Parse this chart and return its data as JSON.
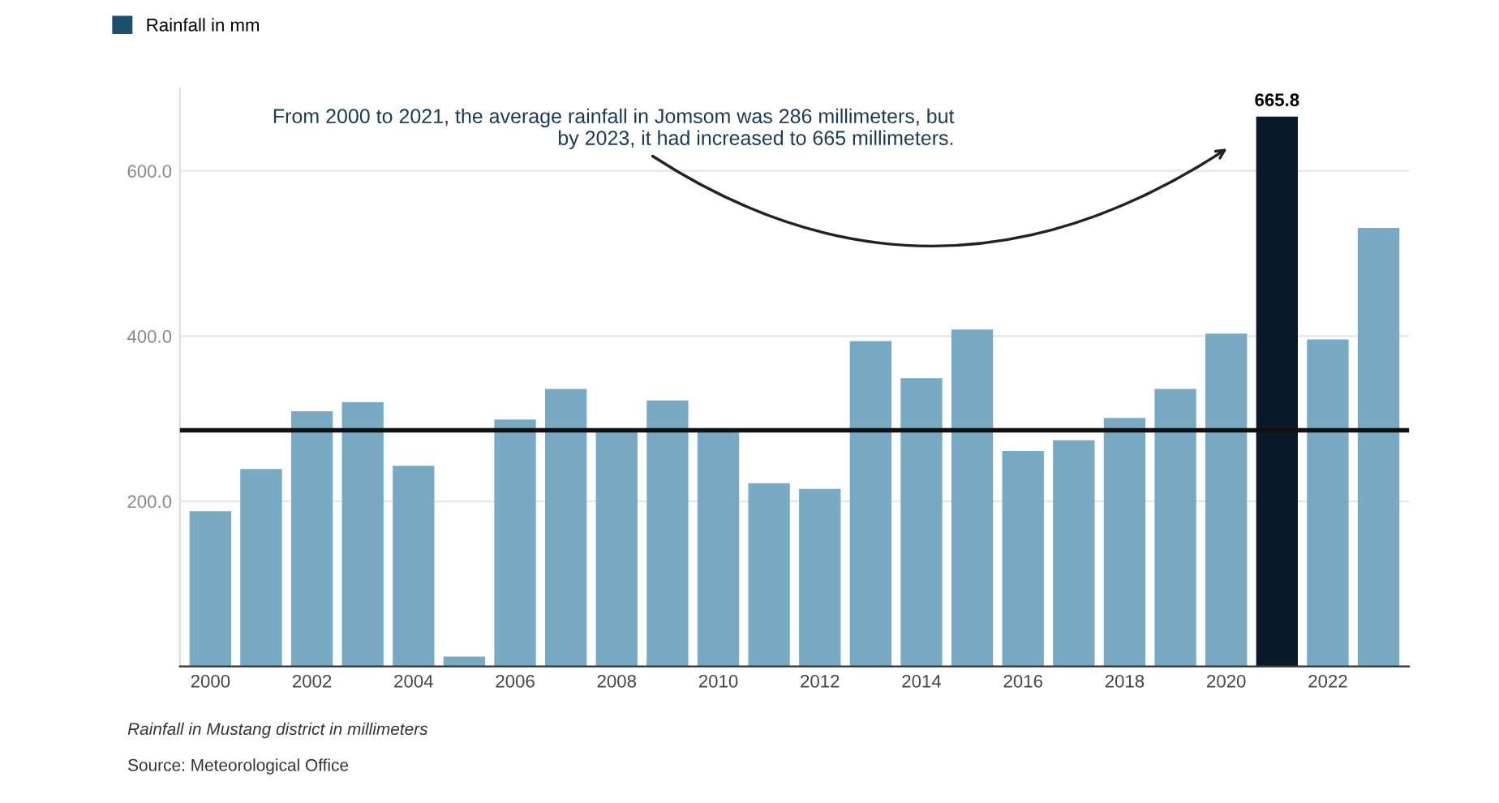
{
  "chart_data": {
    "type": "bar",
    "categories": [
      "2000",
      null,
      "2002",
      null,
      "2004",
      null,
      "2006",
      null,
      "2008",
      null,
      "2010",
      null,
      "2012",
      null,
      "2014",
      null,
      "2016",
      null,
      "2018",
      null,
      "2020",
      null,
      "2022",
      null
    ],
    "series": [
      {
        "name": "Rainfall in mm",
        "color": "#1d4e6b",
        "colors": [
          "#78aac4",
          "#78aac4",
          "#78aac4",
          "#78aac4",
          "#78aac4",
          "#78aac4",
          "#78aac4",
          "#78aac4",
          "#78aac4",
          "#78aac4",
          "#78aac4",
          "#78aac4",
          "#78aac4",
          "#78aac4",
          "#78aac4",
          "#78aac4",
          "#78aac4",
          "#78aac4",
          "#78aac4",
          "#78aac4",
          "#78aac4",
          "#0b1a2a",
          "#78aac4",
          "#78aac4"
        ],
        "values": [
          188,
          239,
          309,
          320,
          243,
          12,
          299,
          336,
          285,
          322,
          286,
          222,
          215,
          394,
          349,
          408,
          261,
          274,
          301,
          336,
          403,
          665.8,
          396,
          531
        ],
        "value_labels": [
          null,
          null,
          null,
          null,
          null,
          null,
          null,
          null,
          null,
          null,
          null,
          null,
          null,
          null,
          null,
          null,
          null,
          null,
          null,
          null,
          null,
          "665.8",
          null,
          null
        ]
      }
    ],
    "ylim": [
      0,
      700
    ],
    "yticks": [
      {
        "value": 0,
        "label": null
      },
      {
        "value": 200,
        "label": "200.0"
      },
      {
        "value": 400,
        "label": "400.0"
      },
      {
        "value": 600,
        "label": "600.0"
      }
    ],
    "grid": "y",
    "legend": "top left",
    "ref_lines": [
      {
        "axis": "y",
        "value": 286,
        "color": "#111111"
      }
    ],
    "annotations": [
      "From 2000 to 2021, the average rainfall in Jomsom was 286 millimeters, but\nby 2023, it had increased to 665 millimeters.",
      "Rainfall in Mustang district in millimeters",
      "Source: Meteorological Office"
    ]
  }
}
